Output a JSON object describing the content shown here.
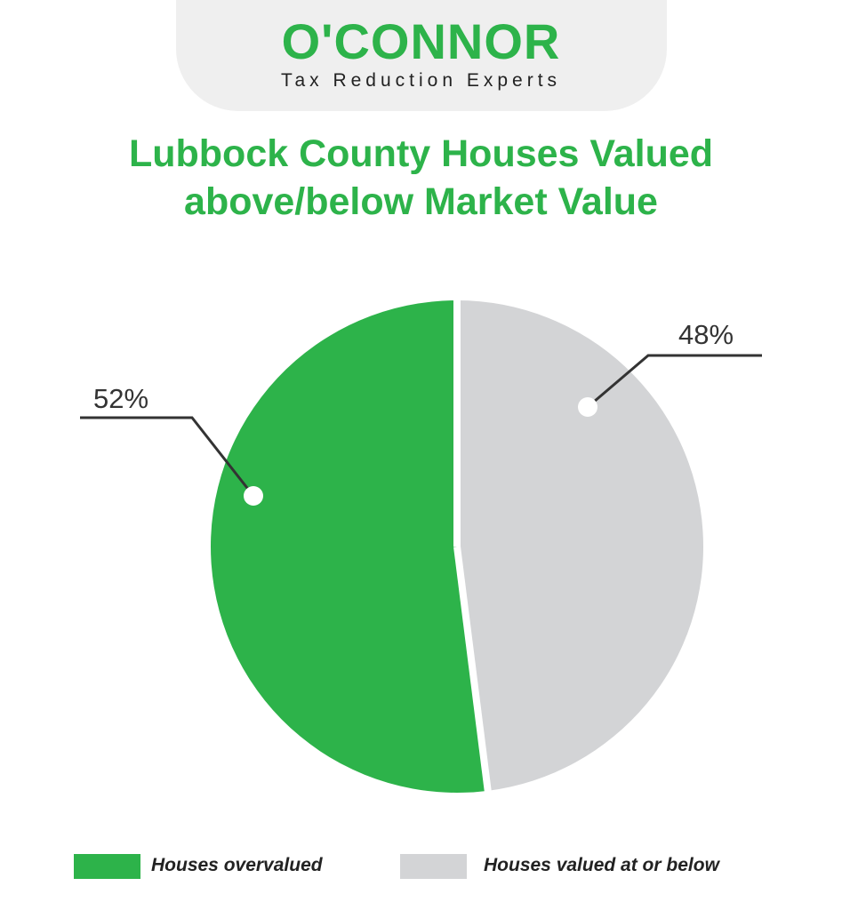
{
  "brand": {
    "name": "O'CONNOR",
    "tagline": "Tax Reduction Experts",
    "band_color": "#efefef",
    "logo_color": "#2db34a"
  },
  "chart_data": {
    "type": "pie",
    "title": "Lubbock County Houses Valued above/below Market Value",
    "title_lines": [
      "Lubbock County Houses Valued",
      "above/below Market Value"
    ],
    "slices": [
      {
        "name": "Houses overvalued",
        "value": 52,
        "label": "52%",
        "color": "#2db34a"
      },
      {
        "name": "Houses valued at or below",
        "value": 48,
        "label": "48%",
        "color": "#d3d4d6"
      }
    ],
    "legend_position": "bottom"
  }
}
